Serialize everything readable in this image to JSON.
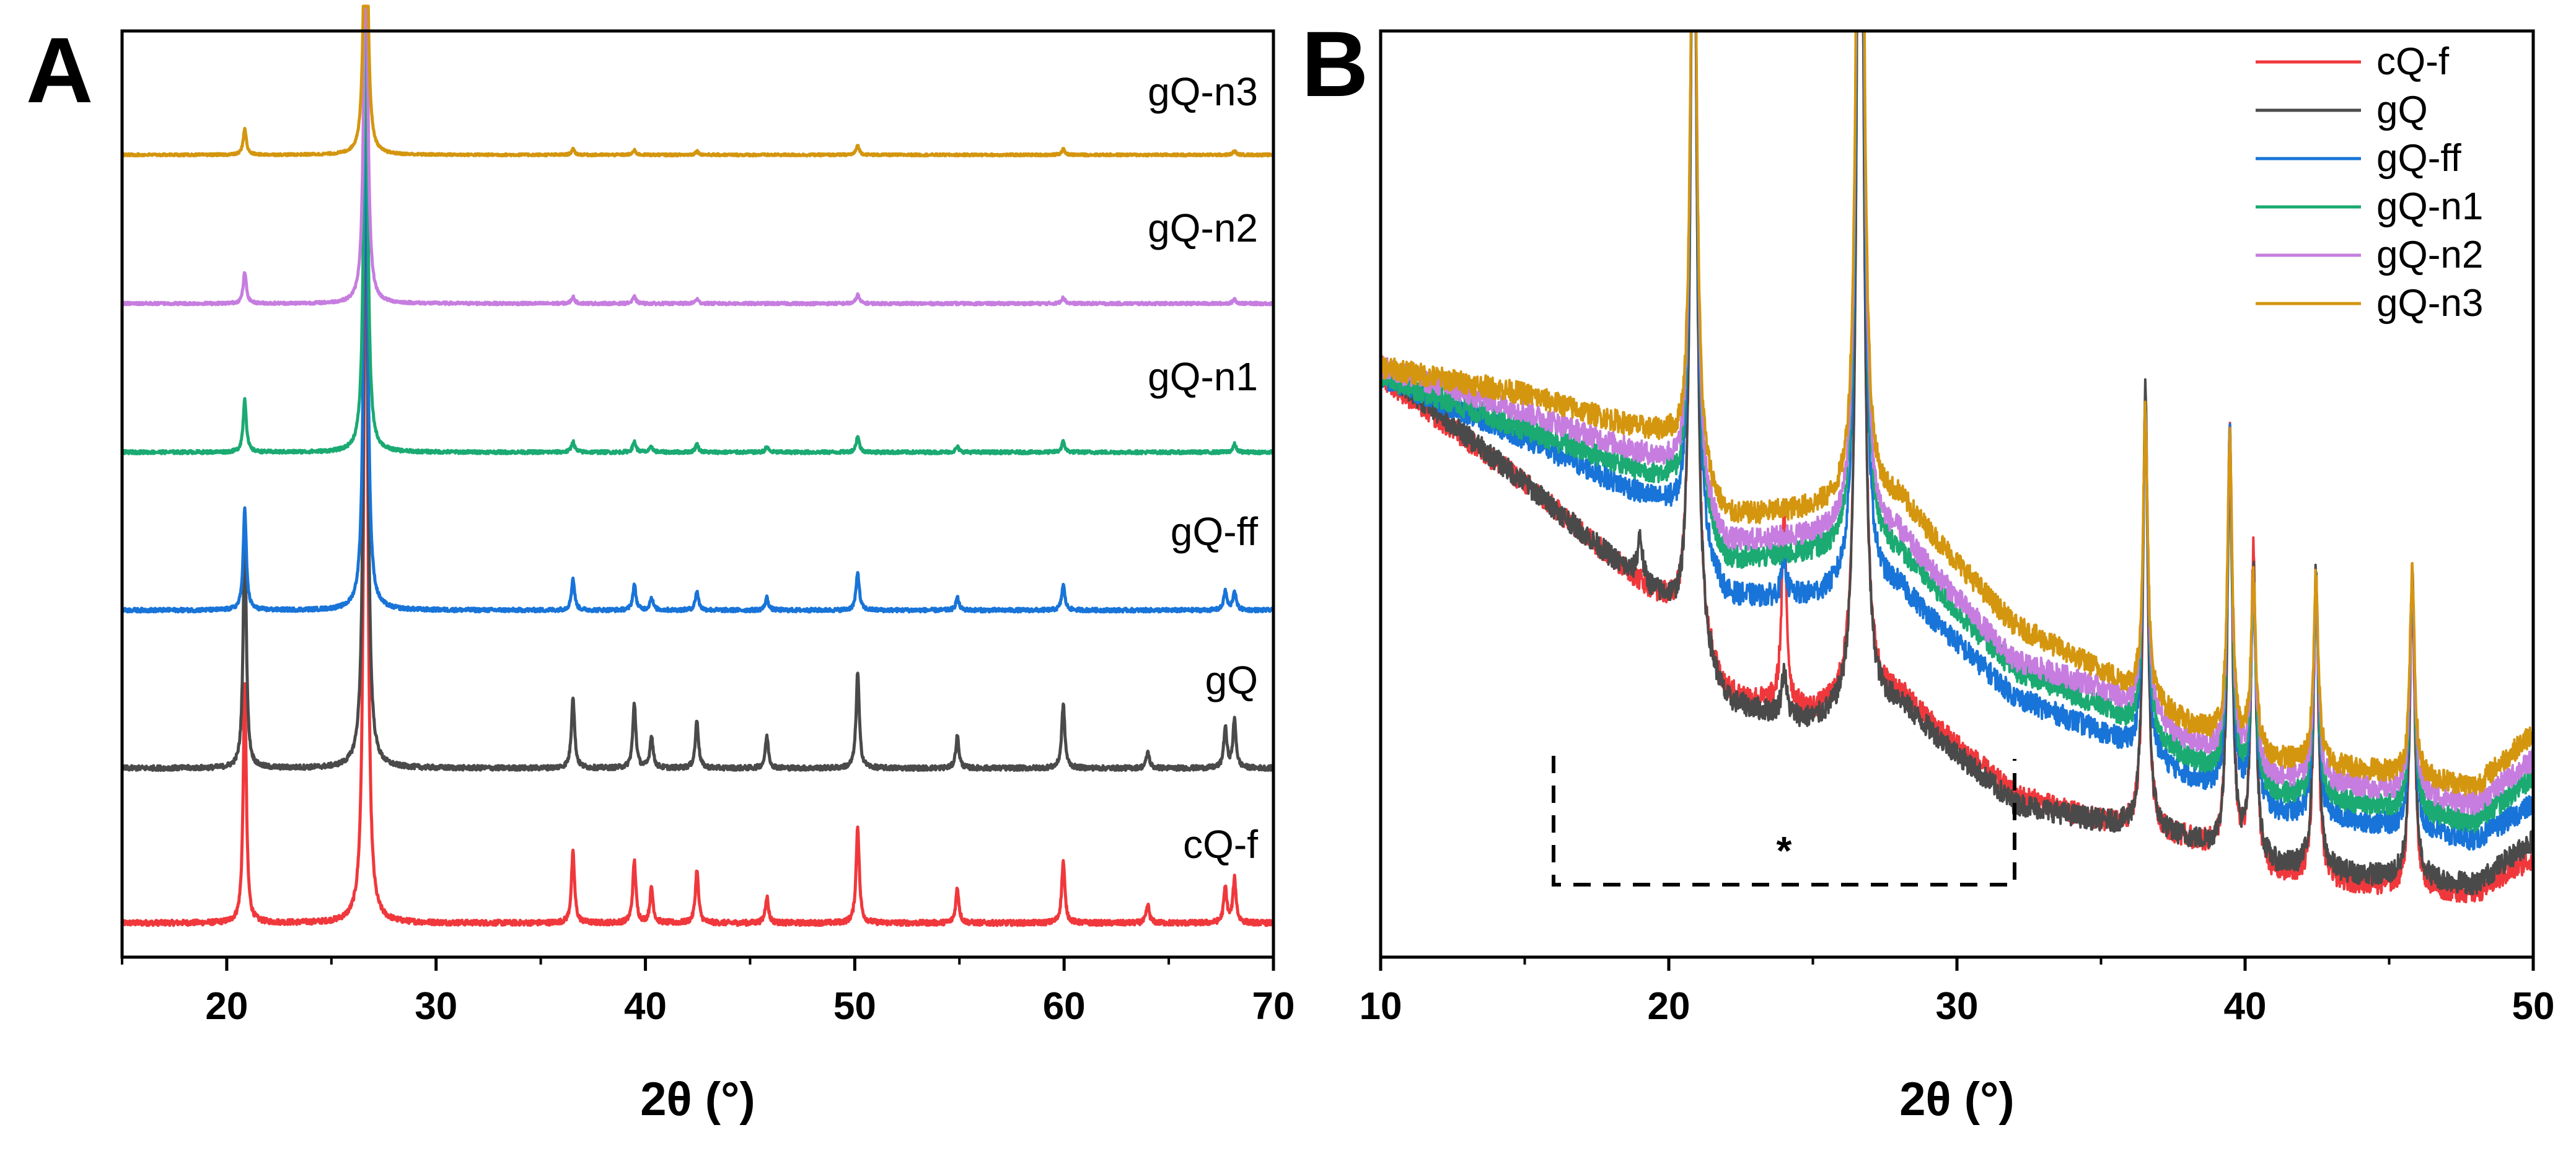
{
  "chart_data": [
    {
      "panel": "A",
      "type": "line",
      "title": "",
      "xlabel": "2θ (°)",
      "ylabel": "",
      "xlim": [
        15,
        70
      ],
      "xticks": [
        20,
        30,
        40,
        50,
        60,
        70
      ],
      "xtick_labels": [
        "20",
        "30",
        "40",
        "50",
        "60",
        "70"
      ],
      "yticks": [],
      "layout": "stacked (offset) patterns, cQ-f bottom to gQ-n3 top",
      "series": [
        {
          "name": "cQ-f",
          "label": "cQ-f",
          "color": "#f0383c",
          "peaks": [
            [
              20.86,
              0.27
            ],
            [
              26.64,
              1.0
            ],
            [
              36.54,
              0.08
            ],
            [
              39.47,
              0.07
            ],
            [
              40.29,
              0.04
            ],
            [
              42.46,
              0.06
            ],
            [
              45.8,
              0.03
            ],
            [
              50.14,
              0.11
            ],
            [
              54.9,
              0.04
            ],
            [
              59.96,
              0.07
            ],
            [
              64.0,
              0.02
            ],
            [
              67.7,
              0.04
            ],
            [
              68.14,
              0.05
            ]
          ]
        },
        {
          "name": "gQ",
          "label": "gQ",
          "color": "#4a4a4a",
          "peaks": [
            [
              20.86,
              0.3
            ],
            [
              26.64,
              1.0
            ],
            [
              36.54,
              0.09
            ],
            [
              39.47,
              0.08
            ],
            [
              40.29,
              0.04
            ],
            [
              42.46,
              0.06
            ],
            [
              45.8,
              0.04
            ],
            [
              50.14,
              0.12
            ],
            [
              54.9,
              0.04
            ],
            [
              59.96,
              0.08
            ],
            [
              64.0,
              0.02
            ],
            [
              67.7,
              0.05
            ],
            [
              68.14,
              0.06
            ]
          ]
        },
        {
          "name": "gQ-ff",
          "label": "gQ-ff",
          "color": "#1874d8",
          "peaks": [
            [
              20.86,
              0.16
            ],
            [
              26.64,
              1.0
            ],
            [
              36.54,
              0.05
            ],
            [
              39.47,
              0.04
            ],
            [
              40.29,
              0.02
            ],
            [
              42.46,
              0.03
            ],
            [
              45.8,
              0.02
            ],
            [
              50.14,
              0.06
            ],
            [
              54.9,
              0.02
            ],
            [
              59.96,
              0.04
            ],
            [
              67.7,
              0.03
            ],
            [
              68.14,
              0.03
            ]
          ]
        },
        {
          "name": "gQ-n1",
          "label": "gQ-n1",
          "color": "#1aaa72",
          "peaks": [
            [
              20.86,
              0.1
            ],
            [
              26.64,
              1.0
            ],
            [
              36.54,
              0.02
            ],
            [
              39.47,
              0.02
            ],
            [
              40.29,
              0.01
            ],
            [
              42.46,
              0.015
            ],
            [
              45.8,
              0.01
            ],
            [
              50.14,
              0.03
            ],
            [
              54.9,
              0.01
            ],
            [
              59.96,
              0.02
            ],
            [
              68.14,
              0.015
            ]
          ]
        },
        {
          "name": "gQ-n2",
          "label": "gQ-n2",
          "color": "#c67ddf",
          "peaks": [
            [
              20.86,
              0.07
            ],
            [
              26.64,
              1.0
            ],
            [
              36.54,
              0.015
            ],
            [
              39.47,
              0.015
            ],
            [
              42.46,
              0.01
            ],
            [
              50.14,
              0.02
            ],
            [
              59.96,
              0.015
            ],
            [
              68.14,
              0.01
            ]
          ]
        },
        {
          "name": "gQ-n3",
          "label": "gQ-n3",
          "color": "#d4960f",
          "peaks": [
            [
              20.86,
              0.07
            ],
            [
              26.64,
              1.0
            ],
            [
              36.54,
              0.015
            ],
            [
              39.47,
              0.012
            ],
            [
              42.46,
              0.01
            ],
            [
              50.14,
              0.025
            ],
            [
              59.96,
              0.015
            ],
            [
              68.14,
              0.01
            ]
          ]
        }
      ]
    },
    {
      "panel": "B",
      "type": "line",
      "title": "",
      "xlabel": "2θ (°)",
      "ylabel": "",
      "xlim": [
        10,
        50
      ],
      "xticks": [
        10,
        20,
        30,
        40,
        50
      ],
      "xtick_labels": [
        "10",
        "20",
        "30",
        "40",
        "50"
      ],
      "yticks": [],
      "legend": {
        "position": "top-right",
        "entries": [
          "cQ-f",
          "gQ",
          "gQ-ff",
          "gQ-n1",
          "gQ-n2",
          "gQ-n3"
        ]
      },
      "annotation": {
        "text": "*",
        "region_x": [
          16,
          32
        ],
        "style": "dashed bracket"
      },
      "series": [
        {
          "name": "cQ-f",
          "color": "#f0383c",
          "baseline": [
            [
              10,
              0.62
            ],
            [
              15,
              0.5
            ],
            [
              20,
              0.36
            ],
            [
              22,
              0.26
            ],
            [
              25,
              0.24
            ],
            [
              28,
              0.26
            ],
            [
              32,
              0.15
            ],
            [
              35,
              0.12
            ],
            [
              38,
              0.1
            ],
            [
              41,
              0.06
            ],
            [
              44,
              0.05
            ],
            [
              48,
              0.04
            ],
            [
              50,
              0.08
            ]
          ],
          "peaks": [
            [
              20.86,
              1.0
            ],
            [
              24.0,
              0.21
            ],
            [
              26.64,
              1.0
            ],
            [
              36.54,
              0.48
            ],
            [
              39.47,
              0.48
            ],
            [
              40.29,
              0.35
            ],
            [
              42.46,
              0.33
            ],
            [
              45.8,
              0.34
            ]
          ]
        },
        {
          "name": "gQ",
          "color": "#4a4a4a",
          "baseline": [
            [
              10,
              0.63
            ],
            [
              15,
              0.5
            ],
            [
              20,
              0.36
            ],
            [
              22,
              0.25
            ],
            [
              25,
              0.23
            ],
            [
              28,
              0.25
            ],
            [
              32,
              0.14
            ],
            [
              35,
              0.12
            ],
            [
              38,
              0.1
            ],
            [
              41,
              0.07
            ],
            [
              44,
              0.06
            ],
            [
              48,
              0.05
            ],
            [
              50,
              0.1
            ]
          ],
          "peaks": [
            [
              19.0,
              0.05
            ],
            [
              20.86,
              1.0
            ],
            [
              24.0,
              0.05
            ],
            [
              26.64,
              1.0
            ],
            [
              36.54,
              0.5
            ],
            [
              39.47,
              0.45
            ],
            [
              40.29,
              0.33
            ],
            [
              42.46,
              0.34
            ],
            [
              45.8,
              0.35
            ]
          ]
        },
        {
          "name": "gQ-ff",
          "color": "#1874d8",
          "baseline": [
            [
              10,
              0.62
            ],
            [
              15,
              0.55
            ],
            [
              20,
              0.47
            ],
            [
              22,
              0.37
            ],
            [
              25,
              0.37
            ],
            [
              28,
              0.38
            ],
            [
              32,
              0.26
            ],
            [
              35,
              0.22
            ],
            [
              38,
              0.17
            ],
            [
              41,
              0.13
            ],
            [
              44,
              0.12
            ],
            [
              48,
              0.1
            ],
            [
              50,
              0.14
            ]
          ],
          "peaks": [
            [
              20.86,
              0.9
            ],
            [
              24.0,
              0.04
            ],
            [
              26.64,
              1.0
            ],
            [
              36.54,
              0.38
            ],
            [
              39.47,
              0.4
            ],
            [
              40.29,
              0.24
            ],
            [
              42.46,
              0.25
            ],
            [
              45.8,
              0.28
            ]
          ]
        },
        {
          "name": "gQ-n1",
          "color": "#1aaa72",
          "baseline": [
            [
              10,
              0.62
            ],
            [
              15,
              0.56
            ],
            [
              20,
              0.5
            ],
            [
              22,
              0.41
            ],
            [
              25,
              0.42
            ],
            [
              28,
              0.42
            ],
            [
              32,
              0.29
            ],
            [
              35,
              0.25
            ],
            [
              38,
              0.19
            ],
            [
              41,
              0.15
            ],
            [
              44,
              0.14
            ],
            [
              48,
              0.12
            ],
            [
              50,
              0.17
            ]
          ],
          "peaks": [
            [
              20.86,
              0.85
            ],
            [
              26.64,
              1.0
            ],
            [
              36.54,
              0.36
            ],
            [
              39.47,
              0.38
            ],
            [
              40.29,
              0.22
            ],
            [
              42.46,
              0.24
            ],
            [
              45.8,
              0.26
            ]
          ]
        },
        {
          "name": "gQ-n2",
          "color": "#c67ddf",
          "baseline": [
            [
              10,
              0.63
            ],
            [
              15,
              0.58
            ],
            [
              20,
              0.52
            ],
            [
              22,
              0.43
            ],
            [
              25,
              0.44
            ],
            [
              28,
              0.44
            ],
            [
              32,
              0.3
            ],
            [
              35,
              0.27
            ],
            [
              38,
              0.21
            ],
            [
              41,
              0.17
            ],
            [
              44,
              0.16
            ],
            [
              48,
              0.14
            ],
            [
              50,
              0.19
            ]
          ],
          "peaks": [
            [
              20.86,
              0.84
            ],
            [
              26.64,
              1.0
            ],
            [
              36.54,
              0.34
            ],
            [
              39.47,
              0.36
            ],
            [
              40.29,
              0.2
            ],
            [
              42.46,
              0.22
            ],
            [
              45.8,
              0.24
            ]
          ]
        },
        {
          "name": "gQ-n3",
          "color": "#d4960f",
          "baseline": [
            [
              10,
              0.63
            ],
            [
              15,
              0.6
            ],
            [
              20,
              0.55
            ],
            [
              22,
              0.46
            ],
            [
              25,
              0.47
            ],
            [
              28,
              0.48
            ],
            [
              32,
              0.34
            ],
            [
              35,
              0.29
            ],
            [
              38,
              0.23
            ],
            [
              41,
              0.19
            ],
            [
              44,
              0.18
            ],
            [
              48,
              0.16
            ],
            [
              50,
              0.22
            ]
          ],
          "peaks": [
            [
              20.86,
              0.8
            ],
            [
              26.64,
              1.0
            ],
            [
              36.54,
              0.32
            ],
            [
              39.47,
              0.34
            ],
            [
              40.29,
              0.19
            ],
            [
              42.46,
              0.21
            ],
            [
              45.8,
              0.23
            ]
          ]
        }
      ]
    }
  ]
}
